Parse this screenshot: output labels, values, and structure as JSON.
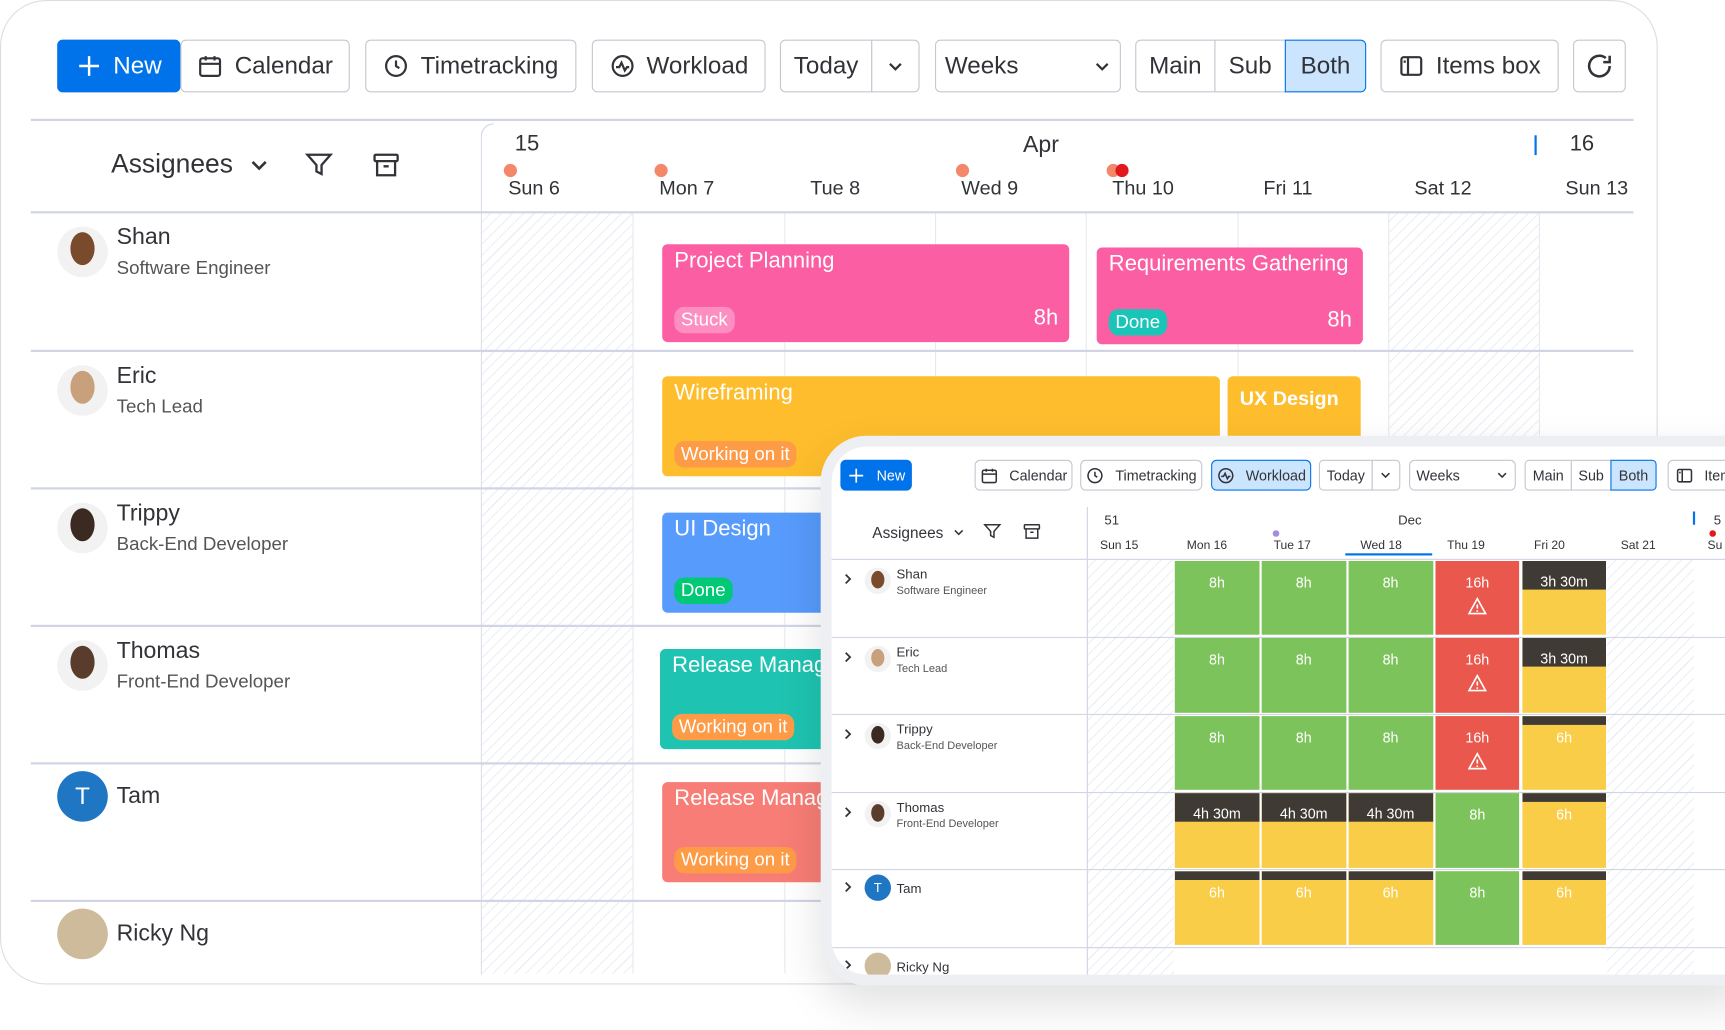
{
  "toolbar": {
    "new": "New",
    "calendar": "Calendar",
    "timetracking": "Timetracking",
    "workload": "Workload",
    "today": "Today",
    "weeks": "Weeks",
    "main": "Main",
    "sub": "Sub",
    "both": "Both",
    "items_box": "Items box"
  },
  "sidebar": {
    "group_by": "Assignees"
  },
  "timeline": {
    "week_start": "15",
    "month": "Apr",
    "week_end": "16",
    "days": [
      "Sun 6",
      "Mon 7",
      "Tue 8",
      "Wed 9",
      "Thu 10",
      "Fri 11",
      "Sat 12",
      "Sun 13"
    ]
  },
  "people": [
    {
      "name": "Shan",
      "role": "Software Engineer",
      "avatar": "#7a4a2c"
    },
    {
      "name": "Eric",
      "role": "Tech Lead",
      "avatar": "#c9a07c"
    },
    {
      "name": "Trippy",
      "role": "Back-End Developer",
      "avatar": "#3b2a22"
    },
    {
      "name": "Thomas",
      "role": "Front-End Developer",
      "avatar": "#5a3c2c"
    },
    {
      "name": "Tam",
      "initial": "T",
      "avatar": "#1f76c2"
    },
    {
      "name": "Ricky Ng",
      "avatar": "#cdbb9c"
    }
  ],
  "tasks": [
    {
      "title": "Project Planning",
      "status": "Stuck",
      "hours": "8h",
      "color": "#fb5ea2",
      "status_color": "#fd8ec2"
    },
    {
      "title": "Requirements Gathering",
      "status": "Done",
      "hours": "8h",
      "color": "#fb5ea2",
      "status_color": "#19c5b7"
    },
    {
      "title": "Wireframing",
      "status": "Working on it",
      "color": "#fdbd2c",
      "status_color": "#fd9b47"
    },
    {
      "title": "UX Design",
      "color": "#fdbd2c"
    },
    {
      "title": "UI Design",
      "status": "Done",
      "color": "#579bfc",
      "status_color": "#00c875"
    },
    {
      "title": "Release Manage",
      "status": "Working on it",
      "color": "#1ec4b1",
      "status_color": "#fd9b47"
    },
    {
      "title": "Release Manage",
      "status": "Working on it",
      "color": "#f77d76",
      "status_color": "#fd9b47"
    }
  ],
  "workload": {
    "week": "51",
    "month": "Dec",
    "week_next": "5",
    "days": [
      "Sun 15",
      "Mon 16",
      "Tue 17",
      "Wed 18",
      "Thu 19",
      "Fri 20",
      "Sat 21",
      "Su"
    ],
    "status_colors": {
      "full": "#7dc35b",
      "over": "#e9574d",
      "partial": "#f9cd48",
      "light": "#f9cd48",
      "band": "#3f3a33"
    },
    "rows": [
      [
        {
          "label": "8h",
          "status": "full"
        },
        {
          "label": "8h",
          "status": "full"
        },
        {
          "label": "8h",
          "status": "full"
        },
        {
          "label": "16h",
          "status": "over"
        },
        {
          "label": "3h 30m",
          "status": "partial"
        }
      ],
      [
        {
          "label": "8h",
          "status": "full"
        },
        {
          "label": "8h",
          "status": "full"
        },
        {
          "label": "8h",
          "status": "full"
        },
        {
          "label": "16h",
          "status": "over"
        },
        {
          "label": "3h 30m",
          "status": "partial"
        }
      ],
      [
        {
          "label": "8h",
          "status": "full"
        },
        {
          "label": "8h",
          "status": "full"
        },
        {
          "label": "8h",
          "status": "full"
        },
        {
          "label": "16h",
          "status": "over"
        },
        {
          "label": "6h",
          "status": "light"
        }
      ],
      [
        {
          "label": "4h 30m",
          "status": "partial"
        },
        {
          "label": "4h 30m",
          "status": "partial"
        },
        {
          "label": "4h 30m",
          "status": "partial"
        },
        {
          "label": "8h",
          "status": "full"
        },
        {
          "label": "6h",
          "status": "light"
        }
      ],
      [
        {
          "label": "6h",
          "status": "light"
        },
        {
          "label": "6h",
          "status": "light"
        },
        {
          "label": "6h",
          "status": "light"
        },
        {
          "label": "8h",
          "status": "full"
        },
        {
          "label": "6h",
          "status": "light"
        }
      ]
    ]
  }
}
